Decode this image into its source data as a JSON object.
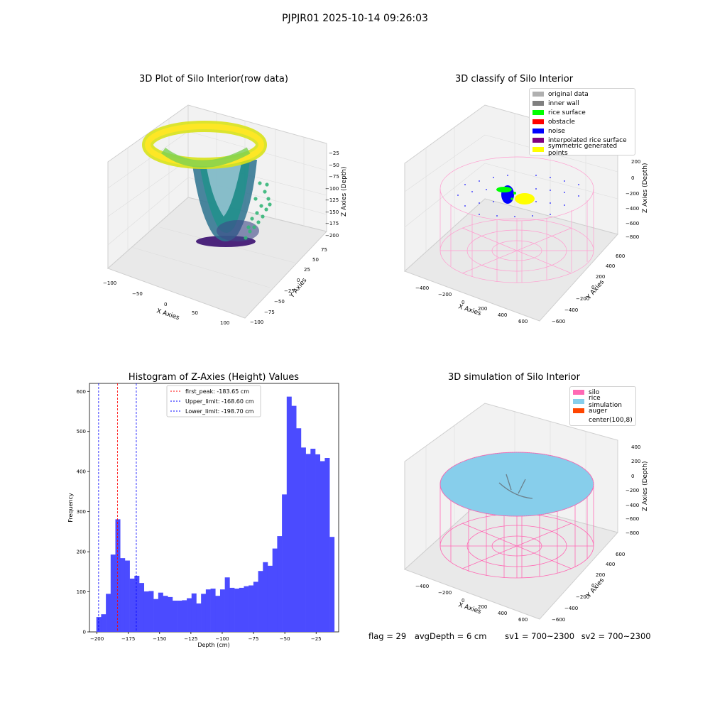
{
  "figure_title": "PJPJR01 2025-10-14 09:26:03",
  "panels": {
    "raw": {
      "title": "3D Plot of Silo Interior(row data)",
      "xlabel": "X Axies",
      "ylabel": "Y Axies",
      "zlabel": "Z Axies (Depth)",
      "xticks": [
        "−100",
        "−50",
        "0",
        "50",
        "100"
      ],
      "yticks": [
        "−100",
        "−75",
        "−50",
        "−25",
        "0",
        "25",
        "50",
        "75"
      ],
      "zticks": [
        "−25",
        "−50",
        "−75",
        "−100",
        "−125",
        "−150",
        "−175",
        "−200"
      ]
    },
    "classify": {
      "title": "3D classify of Silo Interior",
      "xlabel": "X Axies",
      "ylabel": "Y Axies",
      "zlabel": "Z Axies (Depth)",
      "xticks": [
        "−400",
        "−200",
        "0",
        "200",
        "400",
        "600"
      ],
      "yticks": [
        "−600",
        "−400",
        "−200",
        "0",
        "200",
        "400",
        "600"
      ],
      "zticks": [
        "200",
        "0",
        "−200",
        "−400",
        "−600",
        "−800"
      ],
      "legend": [
        {
          "label": "original data",
          "color": "#b0b0b0"
        },
        {
          "label": "inner wall",
          "color": "#808080"
        },
        {
          "label": "rice surface",
          "color": "#00ff00"
        },
        {
          "label": "obstacle",
          "color": "#ff0000"
        },
        {
          "label": "noise",
          "color": "#0000ff"
        },
        {
          "label": "interpolated rice surface",
          "color": "#800080"
        },
        {
          "label": "symmetric generated points",
          "color": "#ffff00"
        }
      ]
    },
    "simulation": {
      "title": "3D simulation of Silo Interior",
      "xlabel": "X Axies",
      "ylabel": "Y Axies",
      "zlabel": "Z Axies (Depth)",
      "xticks": [
        "−400",
        "−200",
        "0",
        "200",
        "400",
        "600"
      ],
      "yticks": [
        "−600",
        "−400",
        "−200",
        "0",
        "200",
        "400",
        "600"
      ],
      "zticks": [
        "400",
        "200",
        "0",
        "−200",
        "−400",
        "−600",
        "−800"
      ],
      "legend": [
        {
          "label": "silo",
          "color": "#ff69b4"
        },
        {
          "label": "rice simulation",
          "color": "#87ceeb"
        },
        {
          "label": "auger",
          "color": "#ff4500"
        },
        {
          "label": "center(100,8)",
          "color": "#ffffff"
        }
      ]
    }
  },
  "footer": {
    "flag": "flag = 29",
    "avg_depth": "avgDepth = 6 cm",
    "sv1": "sv1 = 700~2300",
    "sv2": "sv2 = 700~2300"
  },
  "chart_data": [
    {
      "type": "bar",
      "title": "Histogram of Z-Axies (Height) Values",
      "xlabel": "Depth (cm)",
      "ylabel": "Frequency",
      "xlim": [
        -206,
        -7
      ],
      "ylim": [
        0,
        620
      ],
      "xticks": [
        -200,
        -175,
        -150,
        -125,
        -100,
        -75,
        -50,
        -25
      ],
      "yticks": [
        0,
        100,
        200,
        300,
        400,
        500,
        600
      ],
      "bar_color": "#4b4bff",
      "bin_width": 3.8,
      "bin_start": -200.5,
      "values": [
        37,
        44,
        95,
        193,
        281,
        184,
        178,
        133,
        140,
        122,
        101,
        102,
        82,
        98,
        90,
        87,
        78,
        78,
        79,
        84,
        96,
        71,
        95,
        106,
        108,
        90,
        106,
        136,
        110,
        108,
        110,
        114,
        116,
        125,
        152,
        174,
        165,
        208,
        239,
        343,
        587,
        564,
        508,
        460,
        444,
        457,
        443,
        426,
        434,
        237
      ],
      "vlines": [
        {
          "label": "first_peak: -183.65 cm",
          "x": -183.65,
          "color": "#ff0000"
        },
        {
          "label": "Upper_limit: -168.60 cm",
          "x": -168.6,
          "color": "#0000ff"
        },
        {
          "label": "Lower_limit: -198.70 cm",
          "x": -198.7,
          "color": "#0000ff"
        }
      ]
    }
  ]
}
